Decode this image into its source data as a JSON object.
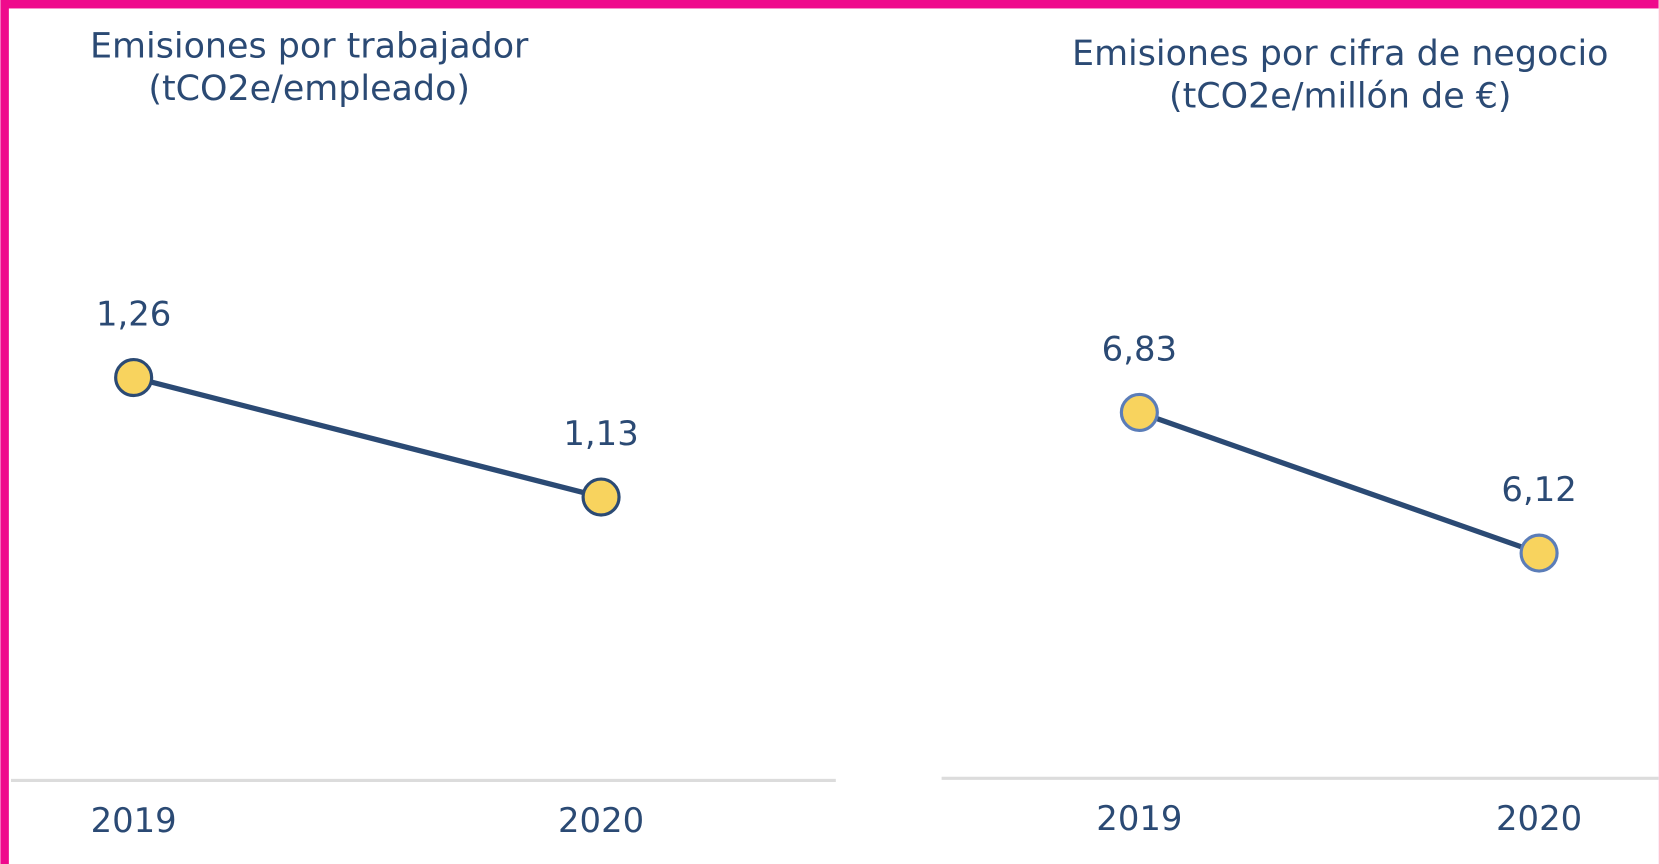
{
  "chart_data": [
    {
      "type": "line",
      "title": "Emisiones por trabajador",
      "subtitle": "(tCO2e/empleado)",
      "categories": [
        "2019",
        "2020"
      ],
      "values": [
        1.26,
        1.13
      ],
      "value_labels": [
        "1,26",
        "1,13"
      ],
      "color": "#2b4a74",
      "marker_color": "#f8d35e"
    },
    {
      "type": "line",
      "title": "Emisiones por cifra de negocio",
      "subtitle": "(tCO2e/millón de €)",
      "categories": [
        "2019",
        "2020"
      ],
      "values": [
        6.83,
        6.12
      ],
      "value_labels": [
        "6,83",
        "6,12"
      ],
      "color": "#2b4a74",
      "marker_color": "#f8d35e"
    }
  ]
}
